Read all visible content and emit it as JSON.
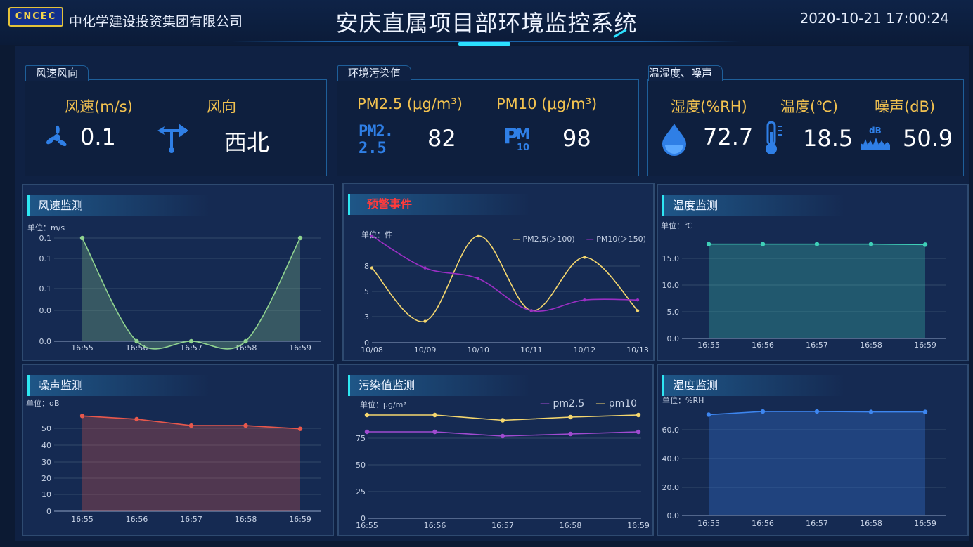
{
  "header": {
    "logo_text": "CNCEC",
    "company": "中化学建设投资集团有限公司",
    "title": "安庆直属项目部环境监控系统",
    "datetime": "2020-10-21 17:00:24"
  },
  "panels": {
    "wind": {
      "tab": "风速风向",
      "speed_label": "风速(m/s)",
      "speed_value": "0.1",
      "dir_label": "风向",
      "dir_value": "西北",
      "icons": [
        "fan-icon",
        "wind-vane-icon"
      ]
    },
    "pollution": {
      "tab": "环境污染值",
      "pm25_label": "PM2.5 (μg/m³)",
      "pm25_value": "82",
      "pm25_icon_text": "PM2.5",
      "pm10_label": "PM10 (μg/m³)",
      "pm10_value": "98",
      "pm10_icon_text": "PM10"
    },
    "thn": {
      "tab": "温湿度、噪声",
      "humidity_label": "湿度(%RH)",
      "humidity_value": "72.7",
      "temp_label": "温度(℃)",
      "temp_value": "18.5",
      "noise_label": "噪声(dB)",
      "noise_value": "50.9",
      "noise_icon_text": "dB",
      "icons": [
        "water-drop-icon",
        "thermometer-icon",
        "sound-wave-icon"
      ]
    }
  },
  "colors": {
    "accent_cyan": "#2ee6f2",
    "label_gold": "#f2c250",
    "icon_blue": "#2f7fe6",
    "alert_red": "#ff3b3b"
  },
  "charts": {
    "wind": {
      "title": "风速监测",
      "unit": "单位：m/s",
      "chart_data": {
        "type": "area",
        "categories": [
          "16:55",
          "16:56",
          "16:57",
          "16:58",
          "16:59"
        ],
        "series": [
          {
            "values": [
              0.1,
              0.0,
              0.0,
              0.0,
              0.1
            ]
          }
        ],
        "y_tick_labels": [
          "0.1",
          "0.1",
          "0.1",
          "0.0",
          "0.0"
        ],
        "ylim": [
          0,
          0.1
        ],
        "color": "#8fd28f",
        "grid": true
      }
    },
    "alerts": {
      "title": "预警事件",
      "unit": "单位：件",
      "chart_data": {
        "type": "line",
        "categories": [
          "10/08",
          "10/09",
          "10/10",
          "10/11",
          "10/12",
          "10/13"
        ],
        "series": [
          {
            "name": "PM2.5(＞100)",
            "values": [
              7,
              2,
              10,
              3,
              8,
              3
            ],
            "color": "#f5d76e"
          },
          {
            "name": "PM10(＞150)",
            "values": [
              10,
              7,
              6,
              3,
              4,
              4
            ],
            "color": "#9b2fc4"
          }
        ],
        "y_tick_labels": [
          "0",
          "3",
          "5",
          "8"
        ],
        "ylim": [
          0,
          10
        ],
        "grid": true
      }
    },
    "temperature": {
      "title": "温度监测",
      "unit": "单位：℃",
      "chart_data": {
        "type": "area",
        "categories": [
          "16:55",
          "16:56",
          "16:57",
          "16:58",
          "16:59"
        ],
        "series": [
          {
            "values": [
              18.5,
              18.5,
              18.5,
              18.5,
              18.4
            ]
          }
        ],
        "y_tick_labels": [
          "0.0",
          "5.0",
          "10.0",
          "15.0"
        ],
        "ylim": [
          0,
          19
        ],
        "color": "#3fd0b8",
        "grid": true
      }
    },
    "noise": {
      "title": "噪声监测",
      "unit": "单位：dB",
      "chart_data": {
        "type": "area",
        "categories": [
          "16:55",
          "16:56",
          "16:57",
          "16:58",
          "16:59"
        ],
        "series": [
          {
            "values": [
              59,
              57,
              53,
              53,
              51
            ]
          }
        ],
        "y_tick_labels": [
          "0",
          "10",
          "20",
          "30",
          "40",
          "50"
        ],
        "ylim": [
          0,
          60
        ],
        "color": "#e8584c",
        "grid": true
      }
    },
    "pollutant": {
      "title": "污染值监测",
      "unit": "单位：μg/m³",
      "chart_data": {
        "type": "line",
        "categories": [
          "16:55",
          "16:56",
          "16:57",
          "16:58",
          "16:59"
        ],
        "series": [
          {
            "name": "pm2.5",
            "values": [
              82,
              82,
              78,
              80,
              82
            ],
            "color": "#a04bd0"
          },
          {
            "name": "pm10",
            "values": [
              98,
              98,
              93,
              96,
              98
            ],
            "color": "#f5d76e"
          }
        ],
        "y_tick_labels": [
          "0",
          "25",
          "50",
          "75"
        ],
        "ylim": [
          0,
          100
        ],
        "grid": true
      }
    },
    "humidity": {
      "title": "湿度监测",
      "unit": "单位：%RH",
      "chart_data": {
        "type": "area",
        "categories": [
          "16:55",
          "16:56",
          "16:57",
          "16:58",
          "16:59"
        ],
        "series": [
          {
            "values": [
              70.5,
              72.7,
              72.7,
              72.4,
              72.4
            ]
          }
        ],
        "y_tick_labels": [
          "0.0",
          "20.0",
          "40.0",
          "60.0"
        ],
        "ylim": [
          0,
          72.7
        ],
        "color": "#3d86f0",
        "grid": true
      }
    }
  }
}
